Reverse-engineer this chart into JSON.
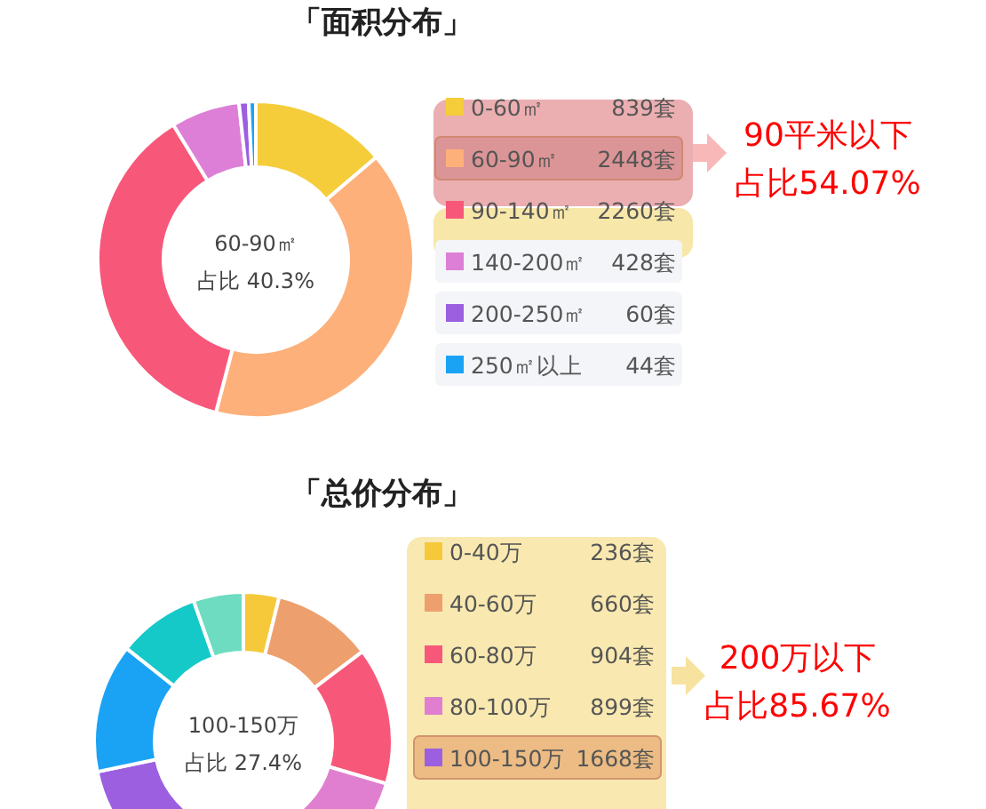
{
  "chart_data": [
    {
      "type": "donut",
      "title": "「面积分布」",
      "categories": [
        "0-60㎡",
        "60-90㎡",
        "90-140㎡",
        "140-200㎡",
        "200-250㎡",
        "250㎡以上"
      ],
      "values": [
        839,
        2448,
        2260,
        428,
        60,
        44
      ],
      "value_labels": [
        "839套",
        "2448套",
        "2260套",
        "428套",
        "60套",
        "44套"
      ],
      "colors": [
        "#f5cd3a",
        "#fdb07a",
        "#f7587a",
        "#dd7fd6",
        "#9b5fe0",
        "#1aa3f5"
      ],
      "legend": "right",
      "annotations": [
        "60-90㎡",
        "占比 40.3%",
        "90平米以下",
        "占比54.07%"
      ]
    },
    {
      "type": "donut",
      "title": "「总价分布」",
      "categories": [
        "0-40万",
        "40-60万",
        "60-80万",
        "80-100万",
        "100-150万",
        null,
        null,
        null
      ],
      "values": [
        236,
        660,
        904,
        899,
        1668,
        850,
        540,
        330
      ],
      "value_labels": [
        "236套",
        "660套",
        "904套",
        "899套",
        "1668套",
        null,
        null,
        null
      ],
      "colors": [
        "#f5c93a",
        "#eda06e",
        "#f7587a",
        "#e07fcf",
        "#9b5fe0",
        "#1aa3f5",
        "#16c9c9",
        "#6ddcc0"
      ],
      "legend": "right",
      "annotations": [
        "100-150万",
        "占比 27.4%",
        "200万以下",
        "占比85.67%"
      ]
    }
  ]
}
